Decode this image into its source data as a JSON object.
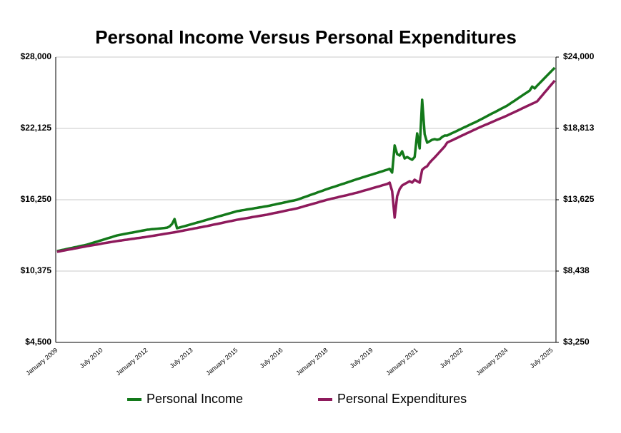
{
  "chart_data": {
    "type": "line",
    "title": "Personal Income Versus Personal Expenditures",
    "categories": [
      "January 2009",
      null,
      null,
      null,
      null,
      null,
      null,
      null,
      null,
      null,
      null,
      null,
      null,
      null,
      null,
      null,
      null,
      null,
      "July 2010",
      null,
      null,
      null,
      null,
      null,
      null,
      null,
      null,
      null,
      null,
      null,
      null,
      null,
      null,
      null,
      null,
      null,
      "January 2012",
      null,
      null,
      null,
      null,
      null,
      null,
      null,
      null,
      null,
      null,
      null,
      null,
      null,
      null,
      null,
      null,
      null,
      "July 2013",
      null,
      null,
      null,
      null,
      null,
      null,
      null,
      null,
      null,
      null,
      null,
      null,
      null,
      null,
      null,
      null,
      null,
      "January 2015",
      null,
      null,
      null,
      null,
      null,
      null,
      null,
      null,
      null,
      null,
      null,
      null,
      null,
      null,
      null,
      null,
      null,
      "July 2016",
      null,
      null,
      null,
      null,
      null,
      null,
      null,
      null,
      null,
      null,
      null,
      null,
      null,
      null,
      null,
      null,
      null,
      "January 2018",
      null,
      null,
      null,
      null,
      null,
      null,
      null,
      null,
      null,
      null,
      null,
      null,
      null,
      null,
      null,
      null,
      null,
      "July 2019",
      null,
      null,
      null,
      null,
      null,
      null,
      null,
      null,
      null,
      null,
      null,
      null,
      null,
      null,
      null,
      null,
      null,
      "January 2021",
      null,
      null,
      null,
      null,
      null,
      null,
      null,
      null,
      null,
      null,
      null,
      null,
      null,
      null,
      null,
      null,
      null,
      "July 2022",
      null,
      null,
      null,
      null,
      null,
      null,
      null,
      null,
      null,
      null,
      null,
      null,
      null,
      null,
      null,
      null,
      null,
      "January 2024",
      null,
      null,
      null,
      null,
      null,
      null,
      null,
      null,
      null,
      null,
      null,
      null,
      null,
      null,
      null,
      null,
      null,
      "July 2025",
      null
    ],
    "series": [
      {
        "name": "Personal Income",
        "color": "#13791a",
        "values": [
          12020,
          12060,
          12110,
          12150,
          12200,
          12240,
          12280,
          12330,
          12370,
          12420,
          12460,
          12500,
          12550,
          12610,
          12680,
          12740,
          12800,
          12870,
          12930,
          12990,
          13060,
          13120,
          13180,
          13250,
          13310,
          13350,
          13390,
          13430,
          13470,
          13510,
          13540,
          13580,
          13620,
          13660,
          13700,
          13740,
          13780,
          13800,
          13830,
          13840,
          13860,
          13880,
          13900,
          13920,
          13950,
          14050,
          14250,
          14660,
          13900,
          13960,
          14020,
          14070,
          14130,
          14190,
          14250,
          14310,
          14370,
          14420,
          14480,
          14540,
          14600,
          14660,
          14720,
          14780,
          14840,
          14900,
          14950,
          15010,
          15070,
          15130,
          15190,
          15250,
          15310,
          15340,
          15380,
          15410,
          15450,
          15480,
          15510,
          15550,
          15580,
          15620,
          15650,
          15690,
          15720,
          15760,
          15810,
          15850,
          15900,
          15940,
          15980,
          16030,
          16070,
          16120,
          16160,
          16200,
          16250,
          16320,
          16400,
          16470,
          16540,
          16620,
          16690,
          16760,
          16840,
          16910,
          16980,
          17060,
          17130,
          17200,
          17270,
          17330,
          17400,
          17470,
          17540,
          17600,
          17670,
          17740,
          17810,
          17880,
          17950,
          18010,
          18080,
          18140,
          18210,
          18270,
          18330,
          18400,
          18460,
          18530,
          18590,
          18660,
          18720,
          18800,
          18490,
          20720,
          20010,
          19890,
          20240,
          19650,
          19770,
          19650,
          19540,
          19770,
          21710,
          20480,
          24480,
          21650,
          20950,
          21070,
          21190,
          21240,
          21190,
          21240,
          21420,
          21540,
          21540,
          21640,
          21740,
          21830,
          21930,
          22030,
          22130,
          22230,
          22320,
          22420,
          22520,
          22610,
          22710,
          22820,
          22920,
          23030,
          23140,
          23250,
          23360,
          23460,
          23570,
          23680,
          23790,
          23890,
          24000,
          24140,
          24280,
          24410,
          24550,
          24690,
          24830,
          24970,
          25100,
          25240,
          25570,
          25420,
          25650,
          25860,
          26070,
          26280,
          26490,
          26700,
          26910,
          27120
        ]
      },
      {
        "name": "Personal Expenditures",
        "color": "#8e1a5c",
        "axis": "y2",
        "values": [
          9840,
          9870,
          9910,
          9940,
          9980,
          10010,
          10040,
          10080,
          10110,
          10150,
          10180,
          10210,
          10250,
          10280,
          10310,
          10340,
          10370,
          10400,
          10440,
          10470,
          10500,
          10530,
          10560,
          10590,
          10620,
          10650,
          10670,
          10700,
          10720,
          10750,
          10780,
          10800,
          10830,
          10850,
          10880,
          10900,
          10930,
          10960,
          10990,
          11020,
          11050,
          11080,
          11110,
          11140,
          11170,
          11200,
          11230,
          11260,
          11290,
          11330,
          11360,
          11400,
          11430,
          11470,
          11500,
          11540,
          11570,
          11610,
          11640,
          11680,
          11710,
          11750,
          11790,
          11830,
          11860,
          11900,
          11940,
          11980,
          12020,
          12060,
          12090,
          12130,
          12170,
          12200,
          12230,
          12260,
          12290,
          12320,
          12360,
          12390,
          12420,
          12450,
          12480,
          12510,
          12540,
          12580,
          12620,
          12660,
          12690,
          12730,
          12770,
          12810,
          12850,
          12890,
          12920,
          12960,
          13000,
          13050,
          13100,
          13160,
          13210,
          13260,
          13310,
          13360,
          13410,
          13470,
          13520,
          13570,
          13620,
          13660,
          13710,
          13750,
          13790,
          13840,
          13880,
          13920,
          13960,
          14010,
          14050,
          14100,
          14140,
          14190,
          14250,
          14300,
          14350,
          14400,
          14460,
          14510,
          14560,
          14610,
          14670,
          14720,
          14770,
          14870,
          14250,
          12330,
          13880,
          14400,
          14660,
          14770,
          14870,
          14970,
          14870,
          15080,
          14970,
          14870,
          15800,
          15960,
          16060,
          16320,
          16520,
          16700,
          16900,
          17100,
          17300,
          17500,
          17780,
          17870,
          17950,
          18040,
          18120,
          18210,
          18300,
          18380,
          18470,
          18550,
          18640,
          18720,
          18810,
          18890,
          18970,
          19050,
          19120,
          19200,
          19280,
          19360,
          19440,
          19520,
          19590,
          19670,
          19750,
          19840,
          19920,
          20010,
          20090,
          20180,
          20270,
          20350,
          20440,
          20520,
          20610,
          20690,
          20780,
          21000,
          21210,
          21430,
          21640,
          21860,
          22070,
          22290
        ]
      }
    ],
    "ylim": [
      4500,
      28000
    ],
    "yticks": [
      {
        "value": 4500,
        "label": "$4,500"
      },
      {
        "value": 10375,
        "label": "$10,375"
      },
      {
        "value": 16250,
        "label": "$16,250"
      },
      {
        "value": 22125,
        "label": "$22,125"
      },
      {
        "value": 28000,
        "label": "$28,000"
      }
    ],
    "y2lim": [
      3250,
      24000
    ],
    "y2ticks": [
      {
        "value": 3250,
        "label": "$3,250"
      },
      {
        "value": 8438,
        "label": "$8,438"
      },
      {
        "value": 13625,
        "label": "$13,625"
      },
      {
        "value": 18813,
        "label": "$18,813"
      },
      {
        "value": 24000,
        "label": "$24,000"
      }
    ],
    "grid": true,
    "legend": "bottom"
  }
}
